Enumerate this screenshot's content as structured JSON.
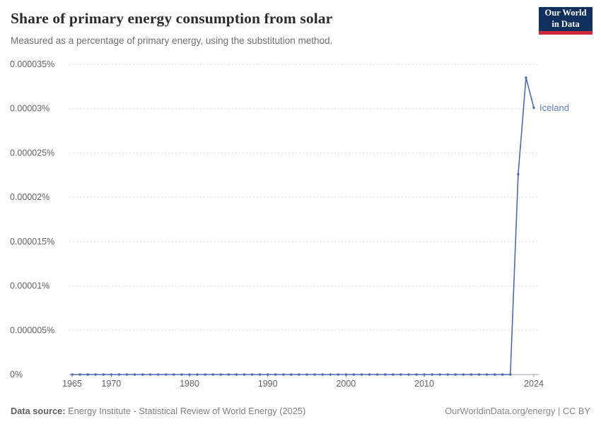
{
  "header": {
    "title": "Share of primary energy consumption from solar",
    "subtitle": "Measured as a percentage of primary energy, using the substitution method."
  },
  "logo": {
    "line1": "Our World",
    "line2": "in Data"
  },
  "colors": {
    "line": "#4c6ba9",
    "end_label": "#5b7fc2",
    "logo_bg": "#12305c",
    "logo_accent": "#d2283c",
    "gridline": "#dcdcdc",
    "axis_line": "#a0a0a0",
    "tick_text": "#636363"
  },
  "chart_data": {
    "type": "line",
    "title": "Share of primary energy consumption from solar",
    "subtitle": "Measured as a percentage of primary energy, using the substitution method.",
    "unit": "%",
    "grid": "horizontal-dashed",
    "legend": "end-of-line-label",
    "xlim": [
      1965,
      2024
    ],
    "ylim": [
      0,
      3.5e-05
    ],
    "x_ticks": [
      1965,
      1970,
      1980,
      1990,
      2000,
      2010,
      2024
    ],
    "y_ticks": [
      {
        "value": 0,
        "label": "0%"
      },
      {
        "value": 5e-06,
        "label": "0.000005%"
      },
      {
        "value": 1e-05,
        "label": "0.00001%"
      },
      {
        "value": 1.5e-05,
        "label": "0.000015%"
      },
      {
        "value": 2e-05,
        "label": "0.00002%"
      },
      {
        "value": 2.5e-05,
        "label": "0.000025%"
      },
      {
        "value": 3e-05,
        "label": "0.00003%"
      },
      {
        "value": 3.5e-05,
        "label": "0.000035%"
      }
    ],
    "x": [
      1965,
      1966,
      1967,
      1968,
      1969,
      1970,
      1971,
      1972,
      1973,
      1974,
      1975,
      1976,
      1977,
      1978,
      1979,
      1980,
      1981,
      1982,
      1983,
      1984,
      1985,
      1986,
      1987,
      1988,
      1989,
      1990,
      1991,
      1992,
      1993,
      1994,
      1995,
      1996,
      1997,
      1998,
      1999,
      2000,
      2001,
      2002,
      2003,
      2004,
      2005,
      2006,
      2007,
      2008,
      2009,
      2010,
      2011,
      2012,
      2013,
      2014,
      2015,
      2016,
      2017,
      2018,
      2019,
      2020,
      2021,
      2022,
      2023,
      2024
    ],
    "series": [
      {
        "name": "Iceland",
        "color": "#4c6ba9",
        "values": [
          0,
          0,
          0,
          0,
          0,
          0,
          0,
          0,
          0,
          0,
          0,
          0,
          0,
          0,
          0,
          0,
          0,
          0,
          0,
          0,
          0,
          0,
          0,
          0,
          0,
          0,
          0,
          0,
          0,
          0,
          0,
          0,
          0,
          0,
          0,
          0,
          0,
          0,
          0,
          0,
          0,
          0,
          0,
          0,
          0,
          0,
          0,
          0,
          0,
          0,
          0,
          0,
          0,
          0,
          0,
          0,
          0,
          2.26e-05,
          3.35e-05,
          3.01e-05
        ]
      }
    ],
    "end_label": "Iceland"
  },
  "footer": {
    "source_label": "Data source:",
    "source_text": "Energy Institute - Statistical Review of World Energy (2025)",
    "credit": "OurWorldinData.org/energy | CC BY"
  }
}
